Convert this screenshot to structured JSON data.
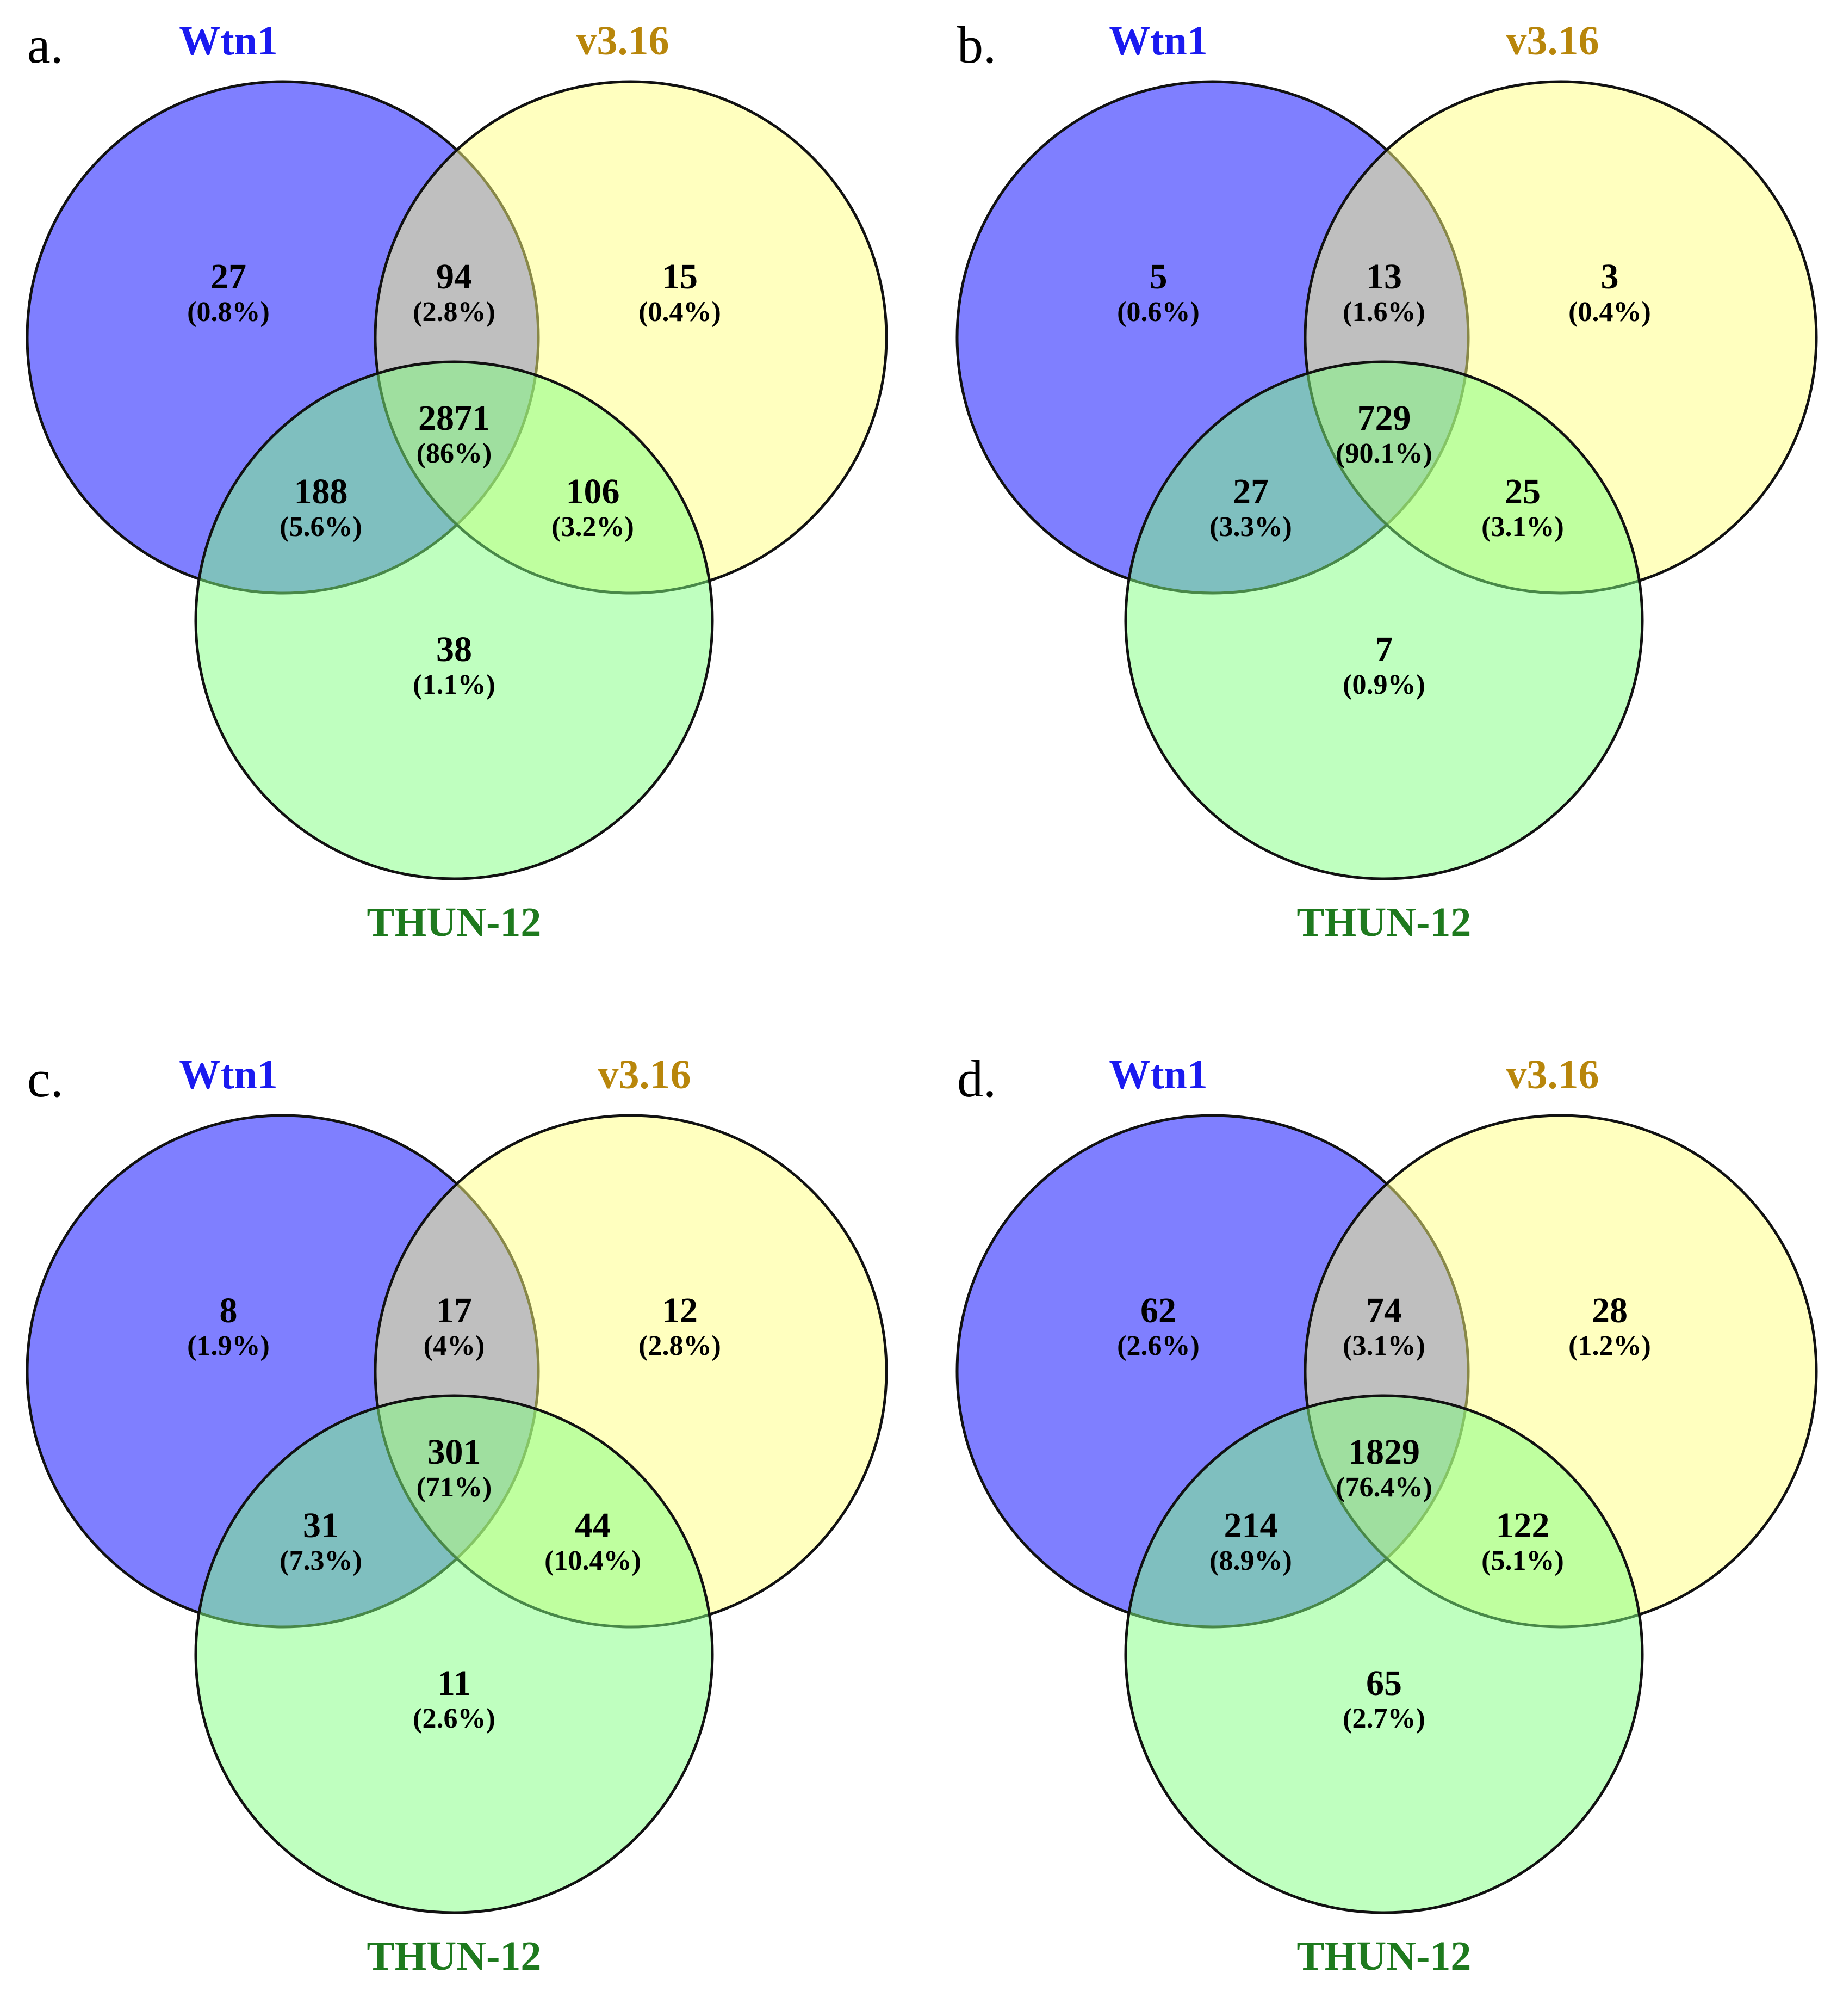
{
  "colors": {
    "wtn1_label": "#1a1af0",
    "v316_label": "#b8860b",
    "thun_label": "#1e7a1e",
    "wtn1_fill": "#7f7fff",
    "v316_fill": "#ffff80",
    "thun_fill": "#80ff80"
  },
  "sets": {
    "a": "Wtn1",
    "b": "v3.16",
    "c": "THUN-12"
  },
  "panels": [
    {
      "letter": "a.",
      "regions": {
        "a_only": {
          "count": "27",
          "pct": "(0.8%)"
        },
        "ab": {
          "count": "94",
          "pct": "(2.8%)"
        },
        "b_only": {
          "count": "15",
          "pct": "(0.4%)"
        },
        "abc": {
          "count": "2871",
          "pct": "(86%)"
        },
        "ac": {
          "count": "188",
          "pct": "(5.6%)"
        },
        "bc": {
          "count": "106",
          "pct": "(3.2%)"
        },
        "c_only": {
          "count": "38",
          "pct": "(1.1%)"
        }
      }
    },
    {
      "letter": "b.",
      "regions": {
        "a_only": {
          "count": "5",
          "pct": "(0.6%)"
        },
        "ab": {
          "count": "13",
          "pct": "(1.6%)"
        },
        "b_only": {
          "count": "3",
          "pct": "(0.4%)"
        },
        "abc": {
          "count": "729",
          "pct": "(90.1%)"
        },
        "ac": {
          "count": "27",
          "pct": "(3.3%)"
        },
        "bc": {
          "count": "25",
          "pct": "(3.1%)"
        },
        "c_only": {
          "count": "7",
          "pct": "(0.9%)"
        }
      }
    },
    {
      "letter": "c.",
      "regions": {
        "a_only": {
          "count": "8",
          "pct": "(1.9%)"
        },
        "ab": {
          "count": "17",
          "pct": "(4%)"
        },
        "b_only": {
          "count": "12",
          "pct": "(2.8%)"
        },
        "abc": {
          "count": "301",
          "pct": "(71%)"
        },
        "ac": {
          "count": "31",
          "pct": "(7.3%)"
        },
        "bc": {
          "count": "44",
          "pct": "(10.4%)"
        },
        "c_only": {
          "count": "11",
          "pct": "(2.6%)"
        }
      }
    },
    {
      "letter": "d.",
      "regions": {
        "a_only": {
          "count": "62",
          "pct": "(2.6%)"
        },
        "ab": {
          "count": "74",
          "pct": "(3.1%)"
        },
        "b_only": {
          "count": "28",
          "pct": "(1.2%)"
        },
        "abc": {
          "count": "1829",
          "pct": "(76.4%)"
        },
        "ac": {
          "count": "214",
          "pct": "(8.9%)"
        },
        "bc": {
          "count": "122",
          "pct": "(5.1%)"
        },
        "c_only": {
          "count": "65",
          "pct": "(2.7%)"
        }
      }
    }
  ]
}
